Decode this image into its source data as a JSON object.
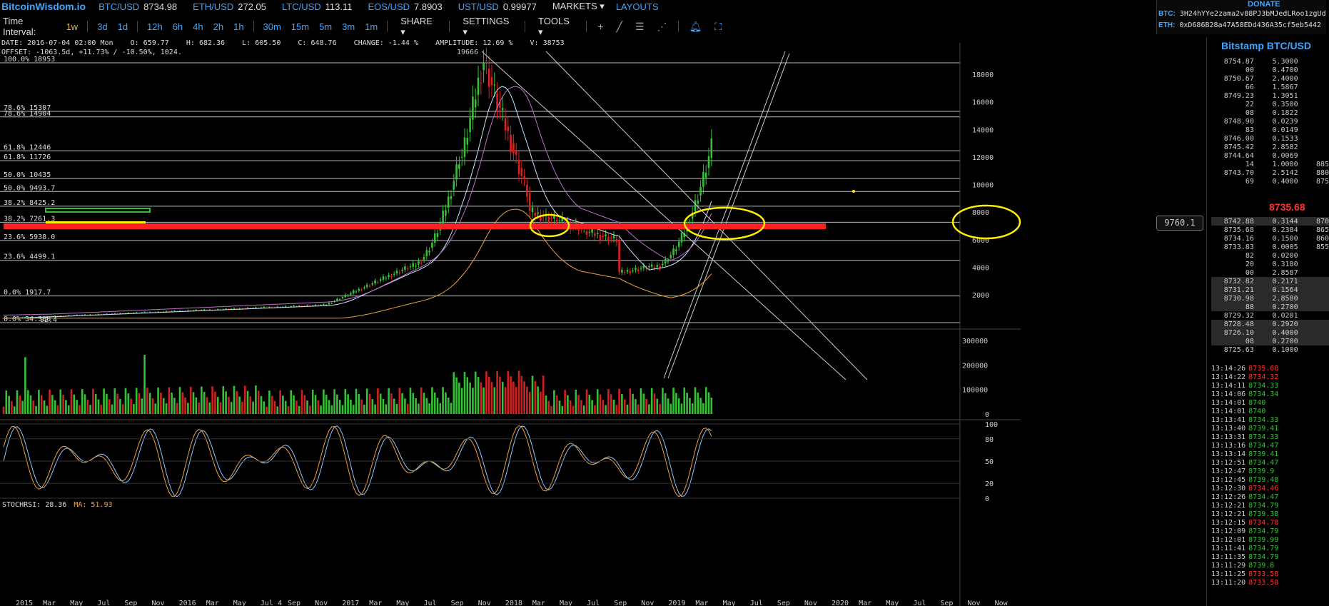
{
  "topbar": {
    "logo": "BitcoinWisdom.io",
    "tickers": [
      {
        "name": "BTC/USD",
        "value": "8734.98"
      },
      {
        "name": "ETH/USD",
        "value": "272.05"
      },
      {
        "name": "LTC/USD",
        "value": "113.11"
      },
      {
        "name": "EOS/USD",
        "value": "7.8903"
      },
      {
        "name": "UST/USD",
        "value": "0.99977"
      }
    ],
    "markets": "MARKETS",
    "layouts": "LAYOUTS"
  },
  "donate": {
    "title": "DONATE",
    "btc_label": "BTC:",
    "btc_addr": "3H24hYYe2zama2v88PJ3bMJedLRoo1zgUd",
    "eth_label": "ETH:",
    "eth_addr": "0xD686B28a47A58EDd436A35cf5eb5442"
  },
  "toolbar": {
    "label": "Time Interval:",
    "intervals": [
      "1w",
      "3d",
      "1d",
      "12h",
      "6h",
      "4h",
      "2h",
      "1h",
      "30m",
      "15m",
      "5m",
      "3m",
      "1m"
    ],
    "active": "1w",
    "share": "SHARE",
    "settings": "SETTINGS",
    "tools": "TOOLS"
  },
  "info": {
    "line1": "DATE: 2016-07-04 02:00 Mon    O: 659.77    H: 682.36    L: 605.50    C: 648.76    CHANGE: -1.44 %    AMPLITUDE: 12.69 %    V: 38753",
    "line2": "OFFSET: -1063.5d, +11.73% / -10.50%, 1024."
  },
  "chart": {
    "high_label": "19666",
    "current_price_box": "9760.1",
    "fib_levels": [
      {
        "label": "100.0% 18953",
        "price": 18953
      },
      {
        "label": "78.6% 15307",
        "price": 15307
      },
      {
        "label": "78.6% 14904",
        "price": 14904
      },
      {
        "label": "61.8% 12446",
        "price": 12446
      },
      {
        "label": "61.8% 11726",
        "price": 11726
      },
      {
        "label": "50.0% 10435",
        "price": 10435
      },
      {
        "label": "50.0% 9493.7",
        "price": 9493.7
      },
      {
        "label": "38.2% 8425.2",
        "price": 8425.2
      },
      {
        "label": "38.2% 7261.3",
        "price": 7261.3
      },
      {
        "label": "23.6% 5938.0",
        "price": 5938.0
      },
      {
        "label": "23.6% 4499.1",
        "price": 4499.1
      },
      {
        "label": "0.0% 1917.7",
        "price": 1917.7
      },
      {
        "label": "0.0% 34.330",
        "price": 34.33
      }
    ],
    "low_label": "92.4",
    "price_axis": [
      "18000",
      "16000",
      "14000",
      "12000",
      "10000",
      "8000",
      "6000",
      "4000",
      "2000"
    ],
    "volume_axis": [
      "300000",
      "200000",
      "100000",
      "0"
    ],
    "stoch_axis": [
      "100",
      "80",
      "50",
      "20",
      "0"
    ],
    "stoch_label": "STOCHRSI: 28.36",
    "ma_label": "MA: 51.93",
    "time_axis": [
      "2015",
      "Mar",
      "May",
      "Jul",
      "Sep",
      "Nov",
      "2016",
      "Mar",
      "May",
      "Jul 4",
      "Sep",
      "Nov",
      "2017",
      "Mar",
      "May",
      "Jul",
      "Sep",
      "Nov",
      "2018",
      "Mar",
      "May",
      "Jul",
      "Sep",
      "Nov",
      "2019",
      "Mar",
      "May",
      "Jul",
      "Sep",
      "Nov",
      "2020",
      "Mar",
      "May",
      "Jul",
      "Sep",
      "Nov",
      "Now"
    ]
  },
  "orderbook": {
    "title": "Bitstamp BTC/USD",
    "asks": [
      {
        "p": "8754.87",
        "a": "5.3000",
        "x": ""
      },
      {
        "p": "00",
        "a": "0.4700",
        "x": ""
      },
      {
        "p": "8750.67",
        "a": "2.4000",
        "x": ""
      },
      {
        "p": "66",
        "a": "1.5867",
        "x": ""
      },
      {
        "p": "8749.23",
        "a": "1.3051",
        "x": ""
      },
      {
        "p": "22",
        "a": "0.3500",
        "x": ""
      },
      {
        "p": "08",
        "a": "0.1822",
        "x": ""
      },
      {
        "p": "8748.90",
        "a": "0.0239",
        "x": ""
      },
      {
        "p": "83",
        "a": "0.0149",
        "x": ""
      },
      {
        "p": "8746.00",
        "a": "0.1533",
        "x": ""
      },
      {
        "p": "8745.42",
        "a": "2.8582",
        "x": ""
      },
      {
        "p": "8744.64",
        "a": "0.0069",
        "x": ""
      },
      {
        "p": "14",
        "a": "1.0000",
        "x": "885"
      },
      {
        "p": "8743.70",
        "a": "2.5142",
        "x": "880"
      },
      {
        "p": "69",
        "a": "0.4000",
        "x": "875"
      }
    ],
    "last": "8735.68",
    "bids": [
      {
        "p": "8742.88",
        "a": "0.3144",
        "x": "870",
        "hl": true
      },
      {
        "p": "8735.68",
        "a": "0.2384",
        "x": "865",
        "hl": false
      },
      {
        "p": "8734.16",
        "a": "0.1500",
        "x": "860",
        "hl": false
      },
      {
        "p": "8733.83",
        "a": "0.0005",
        "x": "855",
        "hl": false
      },
      {
        "p": "82",
        "a": "0.0200",
        "x": "",
        "hl": false
      },
      {
        "p": "20",
        "a": "0.3180",
        "x": "",
        "hl": false
      },
      {
        "p": "00",
        "a": "2.8587",
        "x": "",
        "hl": false
      },
      {
        "p": "8732.82",
        "a": "0.2171",
        "x": "",
        "hl": true
      },
      {
        "p": "8731.21",
        "a": "0.1564",
        "x": "",
        "hl": true
      },
      {
        "p": "8730.98",
        "a": "2.8580",
        "x": "",
        "hl": true
      },
      {
        "p": "88",
        "a": "0.2700",
        "x": "",
        "hl": true
      },
      {
        "p": "8729.32",
        "a": "0.0201",
        "x": "",
        "hl": false
      },
      {
        "p": "8728.48",
        "a": "0.2920",
        "x": "",
        "hl": true
      },
      {
        "p": "8726.10",
        "a": "0.4000",
        "x": "",
        "hl": true
      },
      {
        "p": "08",
        "a": "0.2700",
        "x": "",
        "hl": true
      },
      {
        "p": "8725.63",
        "a": "0.1000",
        "x": "",
        "hl": false
      }
    ]
  },
  "trades": [
    {
      "t": "13:14:26",
      "p": "8735.68",
      "d": "dn"
    },
    {
      "t": "13:14:22",
      "p": "8734.32",
      "d": "dn"
    },
    {
      "t": "13:14:11",
      "p": "8734.33",
      "d": "up"
    },
    {
      "t": "13:14:06",
      "p": "8734.34",
      "d": "up"
    },
    {
      "t": "13:14:01",
      "p": "8740",
      "d": "up"
    },
    {
      "t": "13:14:01",
      "p": "8740",
      "d": "up"
    },
    {
      "t": "13:13:41",
      "p": "8734.33",
      "d": "up"
    },
    {
      "t": "13:13:40",
      "p": "8739.41",
      "d": "up"
    },
    {
      "t": "13:13:31",
      "p": "8734.33",
      "d": "up"
    },
    {
      "t": "13:13:16",
      "p": "8734.47",
      "d": "up"
    },
    {
      "t": "13:13:14",
      "p": "8739.41",
      "d": "up"
    },
    {
      "t": "13:12:51",
      "p": "8734.47",
      "d": "up"
    },
    {
      "t": "13:12:47",
      "p": "8739.9",
      "d": "up"
    },
    {
      "t": "13:12:45",
      "p": "8739.48",
      "d": "up"
    },
    {
      "t": "13:12:30",
      "p": "8734.46",
      "d": "dn"
    },
    {
      "t": "13:12:26",
      "p": "8734.47",
      "d": "up"
    },
    {
      "t": "13:12:21",
      "p": "8734.79",
      "d": "up"
    },
    {
      "t": "13:12:21",
      "p": "8739.38",
      "d": "up"
    },
    {
      "t": "13:12:15",
      "p": "8734.78",
      "d": "dn"
    },
    {
      "t": "13:12:09",
      "p": "8734.79",
      "d": "up"
    },
    {
      "t": "13:12:01",
      "p": "8739.99",
      "d": "up"
    },
    {
      "t": "13:11:41",
      "p": "8734.79",
      "d": "up"
    },
    {
      "t": "13:11:35",
      "p": "8734.79",
      "d": "up"
    },
    {
      "t": "13:11:29",
      "p": "8739.8",
      "d": "up"
    },
    {
      "t": "13:11:25",
      "p": "8733.58",
      "d": "dn"
    },
    {
      "t": "13:11:20",
      "p": "8733.58",
      "d": "dn"
    }
  ],
  "colors": {
    "accent": "#3ea6ff",
    "up": "#35c135",
    "down": "#ff3030",
    "annot_red": "#ff2020",
    "annot_yellow": "#ffee00"
  }
}
